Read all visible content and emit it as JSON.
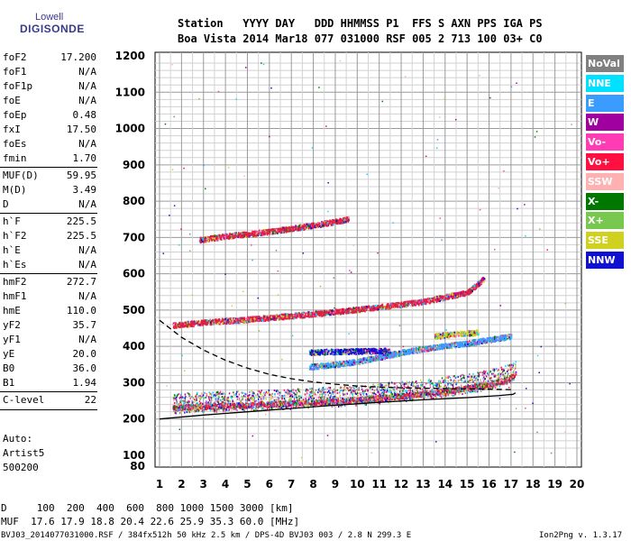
{
  "logo": {
    "top": "Lowell",
    "bottom": "DIGISONDE"
  },
  "header": {
    "line1": "Station   YYYY DAY   DDD HHMMSS P1  FFS S AXN PPS IGA PS",
    "line2": "Boa Vista 2014 Mar18 077 031000 RSF 005 2 713 100 03+ C0"
  },
  "params": [
    {
      "name": "foF2",
      "value": "17.200"
    },
    {
      "name": "foF1",
      "value": "N/A"
    },
    {
      "name": "foF1p",
      "value": "N/A"
    },
    {
      "name": "foE",
      "value": "N/A"
    },
    {
      "name": "foEp",
      "value": "0.48"
    },
    {
      "name": "fxI",
      "value": "17.50"
    },
    {
      "name": "foEs",
      "value": "N/A"
    },
    {
      "name": "fmin",
      "value": "1.70"
    },
    {
      "name": "MUF(D)",
      "value": "59.95"
    },
    {
      "name": "M(D)",
      "value": "3.49"
    },
    {
      "name": "D",
      "value": "N/A"
    },
    {
      "name": "h`F",
      "value": "225.5"
    },
    {
      "name": "h`F2",
      "value": "225.5"
    },
    {
      "name": "h`E",
      "value": "N/A"
    },
    {
      "name": "h`Es",
      "value": "N/A"
    },
    {
      "name": "hmF2",
      "value": "272.7"
    },
    {
      "name": "hmF1",
      "value": "N/A"
    },
    {
      "name": "hmE",
      "value": "110.0"
    },
    {
      "name": "yF2",
      "value": "35.7"
    },
    {
      "name": "yF1",
      "value": "N/A"
    },
    {
      "name": "yE",
      "value": "20.0"
    },
    {
      "name": "B0",
      "value": "36.0"
    },
    {
      "name": "B1",
      "value": "1.94"
    },
    {
      "name": "C-level",
      "value": "22"
    }
  ],
  "notes": [
    "Auto:",
    "Artist5",
    "500200"
  ],
  "legend": [
    {
      "label": "NoVal",
      "color": "#808080"
    },
    {
      "label": "NNE",
      "color": "#00e0ff"
    },
    {
      "label": "E",
      "color": "#3b9cff"
    },
    {
      "label": "W",
      "color": "#a000a0"
    },
    {
      "label": "Vo-",
      "color": "#ff3cb4"
    },
    {
      "label": "Vo+",
      "color": "#ff1040"
    },
    {
      "label": "SSW",
      "color": "#ffb0b0"
    },
    {
      "label": "X-",
      "color": "#007800"
    },
    {
      "label": "X+",
      "color": "#78c850"
    },
    {
      "label": "SSE",
      "color": "#d0d020"
    },
    {
      "label": "NNW",
      "color": "#1010d0"
    }
  ],
  "footer": {
    "d_line": "D     100  200  400  600  800 1000 1500 3000 [km]",
    "muf_line": "MUF  17.6 17.9 18.8 20.4 22.6 25.9 35.3 60.0 [MHz]",
    "file_info": "BVJ03_2014077031000.RSF / 384fx512h 50 kHz 2.5 km / DPS-4D BVJ03 003 / 2.8 N 299.3 E",
    "version": "Ion2Png v. 1.3.17"
  },
  "chart_data": {
    "type": "scatter",
    "xlim": [
      1,
      20
    ],
    "ylim": [
      80,
      1200
    ],
    "x_ticks": [
      1,
      2,
      3,
      4,
      5,
      6,
      7,
      8,
      9,
      10,
      11,
      12,
      13,
      14,
      15,
      16,
      17,
      18,
      19,
      20
    ],
    "y_ticks": [
      80,
      100,
      200,
      300,
      400,
      500,
      600,
      700,
      800,
      900,
      1000,
      1100,
      1200
    ],
    "grid": true,
    "traces": [
      {
        "name": "O-trace F2",
        "color": "#e02040",
        "x": [
          1.6,
          2,
          3,
          4,
          5,
          6,
          7,
          8,
          9,
          10,
          11,
          12,
          13,
          14,
          15,
          16,
          16.8,
          17.2
        ],
        "y": [
          232,
          234,
          236,
          238,
          240,
          242,
          245,
          248,
          251,
          255,
          260,
          265,
          271,
          278,
          287,
          297,
          310,
          325
        ]
      },
      {
        "name": "2nd hop",
        "color": "#e02040",
        "x": [
          1.6,
          3,
          5,
          7,
          9,
          11,
          13,
          15,
          15.8
        ],
        "y": [
          460,
          468,
          476,
          486,
          497,
          510,
          525,
          550,
          590
        ]
      },
      {
        "name": "3rd hop",
        "color": "#e02040",
        "x": [
          2.8,
          4,
          6,
          8,
          9.6
        ],
        "y": [
          695,
          705,
          718,
          735,
          752
        ]
      },
      {
        "name": "X-trace",
        "color": "#3b9cff",
        "x": [
          7.8,
          9,
          10,
          11,
          12,
          13,
          14,
          15,
          16,
          17
        ],
        "y": [
          345,
          352,
          360,
          372,
          385,
          395,
          403,
          410,
          420,
          430
        ]
      },
      {
        "name": "Es band",
        "color": "#1010d0",
        "x": [
          7.8,
          8.5,
          9.5,
          10.5,
          11.5
        ],
        "y": [
          385,
          387,
          388,
          389,
          390
        ]
      },
      {
        "name": "SSE band",
        "color": "#d0d020",
        "x": [
          13.5,
          14,
          14.5,
          15,
          15.5
        ],
        "y": [
          430,
          433,
          436,
          438,
          440
        ]
      }
    ],
    "model_profile": {
      "color": "#000000",
      "x": [
        1,
        3,
        5,
        7,
        9,
        11,
        13,
        15,
        16.5,
        17.1,
        17.2
      ],
      "y": [
        200,
        211,
        220,
        229,
        238,
        246,
        253,
        259,
        265,
        268,
        272
      ]
    },
    "model_dashed": {
      "color": "#000000",
      "x": [
        1,
        2,
        3,
        4,
        5,
        6,
        7,
        8,
        9,
        10,
        11,
        12,
        13,
        14,
        15,
        16,
        17
      ],
      "y": [
        472,
        425,
        390,
        362,
        340,
        323,
        311,
        302,
        296,
        291,
        288,
        286,
        285,
        284,
        283,
        282,
        281
      ]
    }
  }
}
